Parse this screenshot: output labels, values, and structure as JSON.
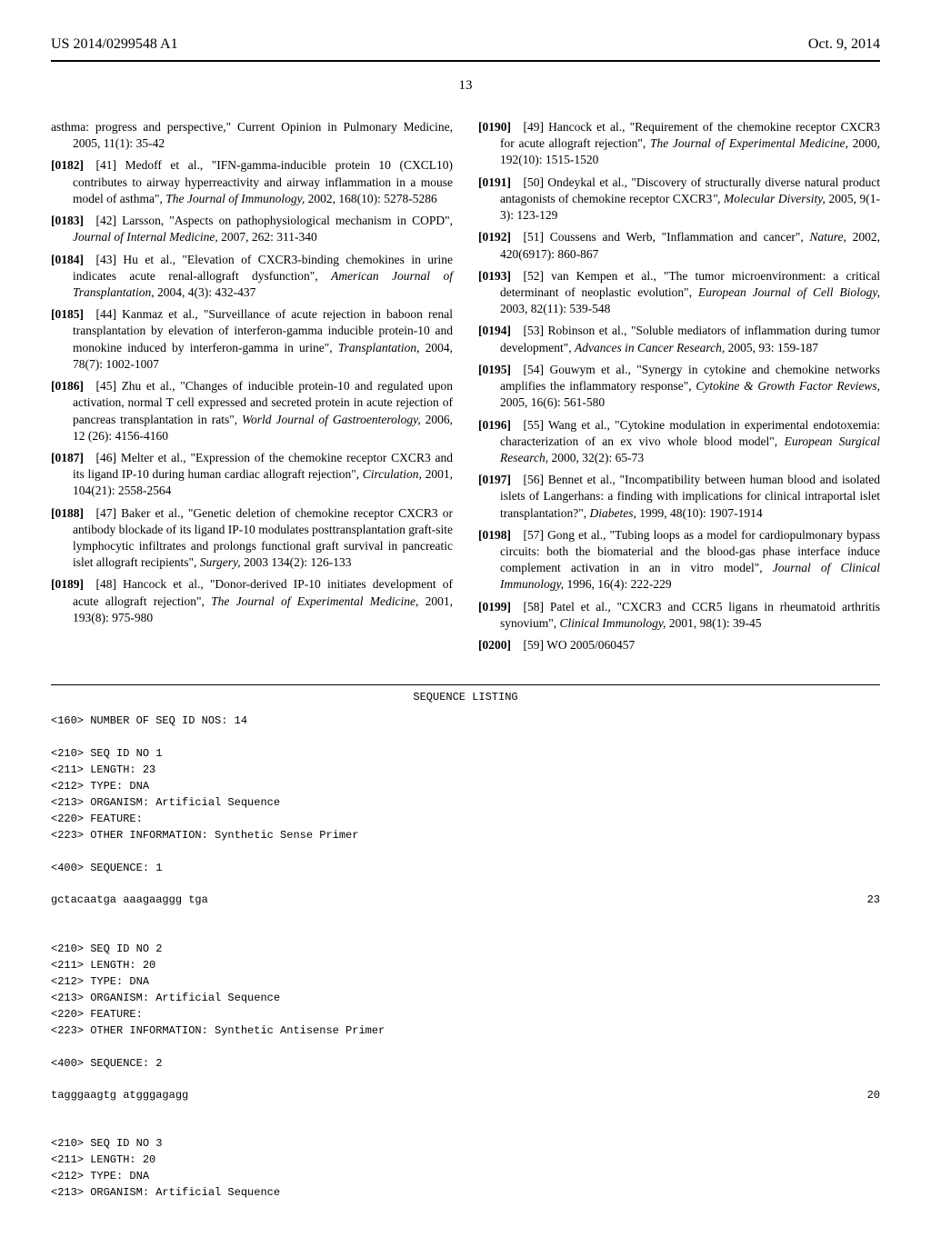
{
  "header": {
    "application_number": "US 2014/0299548 A1",
    "pub_date": "Oct. 9, 2014"
  },
  "page_number": "13",
  "left_column": {
    "continuation": "asthma: progress and perspective,\" Current Opinion in Pulmonary Medicine, 2005, 11(1): 35-42",
    "refs": [
      {
        "para": "[0182]",
        "num": "[41]",
        "body": "Medoff et al., \"IFN-gamma-inducible protein 10 (CXCL10) contributes to airway hyperreactivity and airway inflammation in a mouse model of asthma\", ",
        "cite": "The Journal of Immunology,",
        "tail": " 2002, 168(10): 5278-5286"
      },
      {
        "para": "[0183]",
        "num": "[42]",
        "body": "Larsson, \"Aspects on pathophysiological mechanism in COPD\", ",
        "cite": "Journal of Internal Medicine,",
        "tail": " 2007, 262: 311-340"
      },
      {
        "para": "[0184]",
        "num": "[43]",
        "body": "Hu et al., \"Elevation of CXCR3-binding chemokines in urine indicates acute renal-allograft dysfunction\", ",
        "cite": "American Journal of Transplantation,",
        "tail": " 2004, 4(3): 432-437"
      },
      {
        "para": "[0185]",
        "num": "[44]",
        "body": "Kanmaz et al., \"Surveillance of acute rejection in baboon renal transplantation by elevation of interferon-gamma inducible protein-10 and monokine induced by interferon-gamma in urine\", ",
        "cite": "Transplantation,",
        "tail": " 2004, 78(7): 1002-1007"
      },
      {
        "para": "[0186]",
        "num": "[45]",
        "body": "Zhu et al., \"Changes of inducible protein-10 and regulated upon activation, normal T cell expressed and secreted protein in acute rejection of pancreas transplantation in rats\", ",
        "cite": "World Journal of Gastroenterology,",
        "tail": " 2006, 12 (26): 4156-4160"
      },
      {
        "para": "[0187]",
        "num": "[46]",
        "body": "Melter et al., \"Expression of the chemokine receptor CXCR3 and its ligand IP-10 during human cardiac allograft rejection\", ",
        "cite": "Circulation,",
        "tail": " 2001, 104(21): 2558-2564"
      },
      {
        "para": "[0188]",
        "num": "[47]",
        "body": "Baker et al., \"Genetic deletion of chemokine receptor CXCR3 or antibody blockade of its ligand IP-10 modulates posttransplantation graft-site lymphocytic infiltrates and prolongs functional graft survival in pancreatic islet allograft recipients\", ",
        "cite": "Surgery,",
        "tail": " 2003 134(2): 126-133"
      },
      {
        "para": "[0189]",
        "num": "[48]",
        "body": "Hancock et al., \"Donor-derived IP-10 initiates development of acute allograft rejection\", ",
        "cite": "The Journal of Experimental Medicine,",
        "tail": " 2001, 193(8): 975-980"
      }
    ]
  },
  "right_column": {
    "refs": [
      {
        "para": "[0190]",
        "num": "[49]",
        "body": "Hancock et al., \"Requirement of the chemokine receptor CXCR3 for acute allograft rejection\", ",
        "cite": "The Journal of Experimental Medicine,",
        "tail": " 2000, 192(10): 1515-1520"
      },
      {
        "para": "[0191]",
        "num": "[50]",
        "body": "Ondeykal et al., \"Discovery of structurally diverse natural product antagonists of chemokine receptor CXCR3",
        "cite": "\", Molecular Diversity,",
        "tail": " 2005, 9(1-3): 123-129"
      },
      {
        "para": "[0192]",
        "num": "[51]",
        "body": "Coussens and Werb, \"Inflammation and cancer\", ",
        "cite": "Nature,",
        "tail": " 2002, 420(6917): 860-867"
      },
      {
        "para": "[0193]",
        "num": "[52]",
        "body": "van Kempen et al., \"The tumor microenvironment: a critical determinant of neoplastic evolution\", ",
        "cite": "European Journal of Cell Biology,",
        "tail": " 2003, 82(11): 539-548"
      },
      {
        "para": "[0194]",
        "num": "[53]",
        "body": "Robinson et al., \"Soluble mediators of inflammation during tumor development\", ",
        "cite": "Advances in Cancer Research,",
        "tail": " 2005, 93: 159-187"
      },
      {
        "para": "[0195]",
        "num": "[54]",
        "body": "Gouwym et al., \"Synergy in cytokine and chemokine networks amplifies the inflammatory response\", ",
        "cite": "Cytokine & Growth Factor Reviews,",
        "tail": " 2005, 16(6): 561-580"
      },
      {
        "para": "[0196]",
        "num": "[55]",
        "body": "Wang et al., \"Cytokine modulation in experimental endotoxemia: characterization of an ex vivo whole blood model\", ",
        "cite": "European Surgical Research,",
        "tail": " 2000, 32(2): 65-73"
      },
      {
        "para": "[0197]",
        "num": "[56]",
        "body": "Bennet et al., \"Incompatibility between human blood and isolated islets of Langerhans: a finding with implications for clinical intraportal islet transplantation?\", ",
        "cite": "Diabetes,",
        "tail": " 1999, 48(10): 1907-1914"
      },
      {
        "para": "[0198]",
        "num": "[57]",
        "body": "Gong et al., \"Tubing loops as a model for cardiopulmonary bypass circuits: both the biomaterial and the blood-gas phase interface induce complement activation in an in vitro model\", ",
        "cite": "Journal of Clinical Immunology,",
        "tail": " 1996, 16(4): 222-229"
      },
      {
        "para": "[0199]",
        "num": "[58]",
        "body": "Patel et al., \"CXCR3 and CCR5 ligans in rheumatoid arthritis synovium\", ",
        "cite": "Clinical Immunology,",
        "tail": " 2001, 98(1): 39-45"
      },
      {
        "para": "[0200]",
        "num": "[59]",
        "body": "WO 2005/060457",
        "cite": "",
        "tail": ""
      }
    ]
  },
  "sequence": {
    "title": "SEQUENCE LISTING",
    "l160": "<160> NUMBER OF SEQ ID NOS: 14",
    "seq1": {
      "l210": "<210> SEQ ID NO 1",
      "l211": "<211> LENGTH: 23",
      "l212": "<212> TYPE: DNA",
      "l213": "<213> ORGANISM: Artificial Sequence",
      "l220": "<220> FEATURE:",
      "l223": "<223> OTHER INFORMATION: Synthetic Sense Primer",
      "l400": "<400> SEQUENCE: 1",
      "dna": "gctacaatga aaagaaggg tga",
      "len": "23"
    },
    "seq2": {
      "l210": "<210> SEQ ID NO 2",
      "l211": "<211> LENGTH: 20",
      "l212": "<212> TYPE: DNA",
      "l213": "<213> ORGANISM: Artificial Sequence",
      "l220": "<220> FEATURE:",
      "l223": "<223> OTHER INFORMATION: Synthetic Antisense Primer",
      "l400": "<400> SEQUENCE: 2",
      "dna": "tagggaagtg atgggagagg",
      "len": "20"
    },
    "seq3": {
      "l210": "<210> SEQ ID NO 3",
      "l211": "<211> LENGTH: 20",
      "l212": "<212> TYPE: DNA",
      "l213": "<213> ORGANISM: Artificial Sequence"
    }
  }
}
